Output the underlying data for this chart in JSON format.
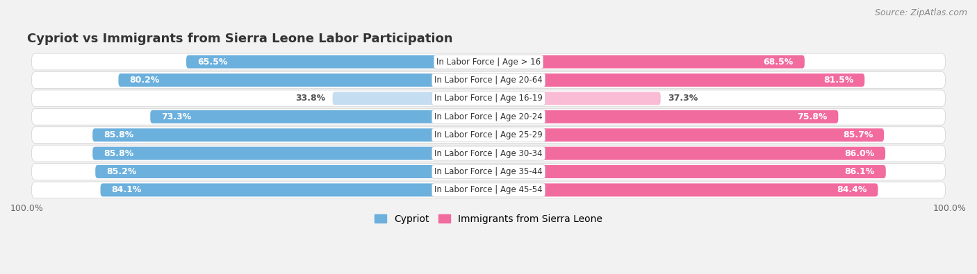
{
  "title": "Cypriot vs Immigrants from Sierra Leone Labor Participation",
  "source": "Source: ZipAtlas.com",
  "categories": [
    "In Labor Force | Age > 16",
    "In Labor Force | Age 20-64",
    "In Labor Force | Age 16-19",
    "In Labor Force | Age 20-24",
    "In Labor Force | Age 25-29",
    "In Labor Force | Age 30-34",
    "In Labor Force | Age 35-44",
    "In Labor Force | Age 45-54"
  ],
  "cypriot_values": [
    65.5,
    80.2,
    33.8,
    73.3,
    85.8,
    85.8,
    85.2,
    84.1
  ],
  "immigrant_values": [
    68.5,
    81.5,
    37.3,
    75.8,
    85.7,
    86.0,
    86.1,
    84.4
  ],
  "cypriot_color": "#6cb0dd",
  "cypriot_light_color": "#c5ddf0",
  "immigrant_color": "#f26b9f",
  "immigrant_light_color": "#f9bcd4",
  "bg_color": "#f2f2f2",
  "row_bg": "#e8e8e8",
  "legend_cypriot": "Cypriot",
  "legend_immigrant": "Immigrants from Sierra Leone",
  "title_fontsize": 13,
  "source_fontsize": 9,
  "value_fontsize": 9,
  "cat_fontsize": 8.5,
  "legend_fontsize": 10
}
